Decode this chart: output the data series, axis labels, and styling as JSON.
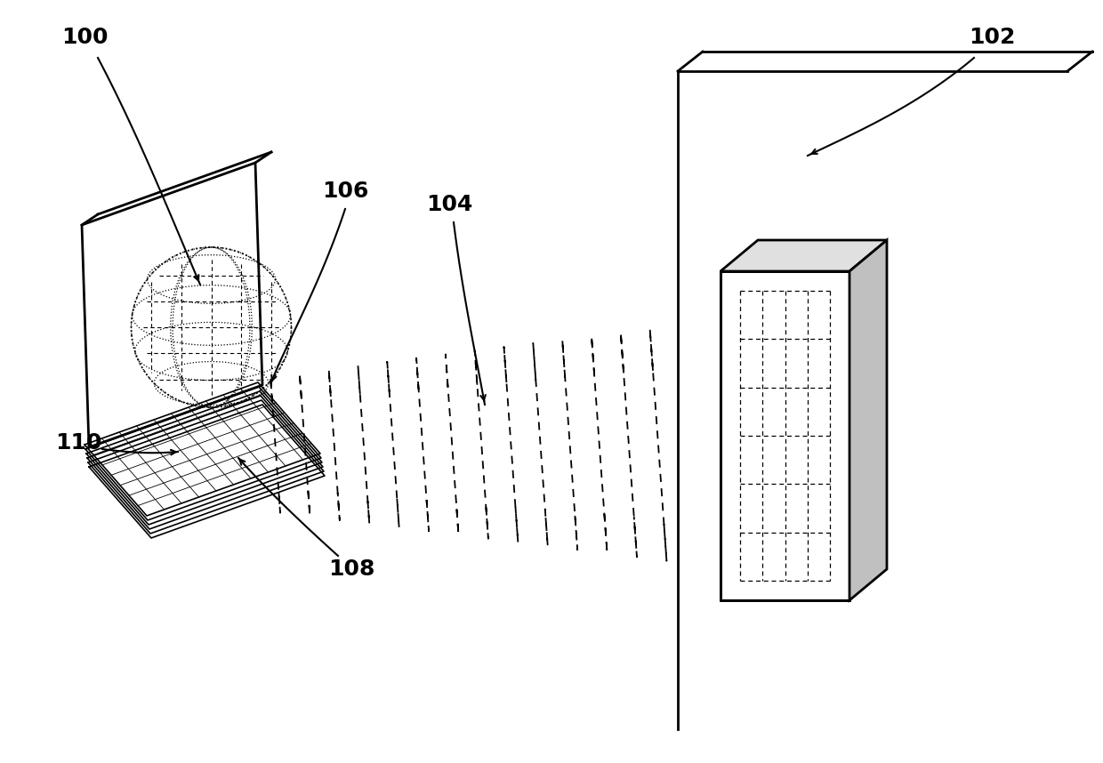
{
  "bg_color": "#ffffff",
  "line_color": "#000000",
  "label_fontsize": 18,
  "label_fontweight": "bold",
  "lw_main": 1.5,
  "lw_thick": 2.0,
  "lw_thin": 0.8
}
